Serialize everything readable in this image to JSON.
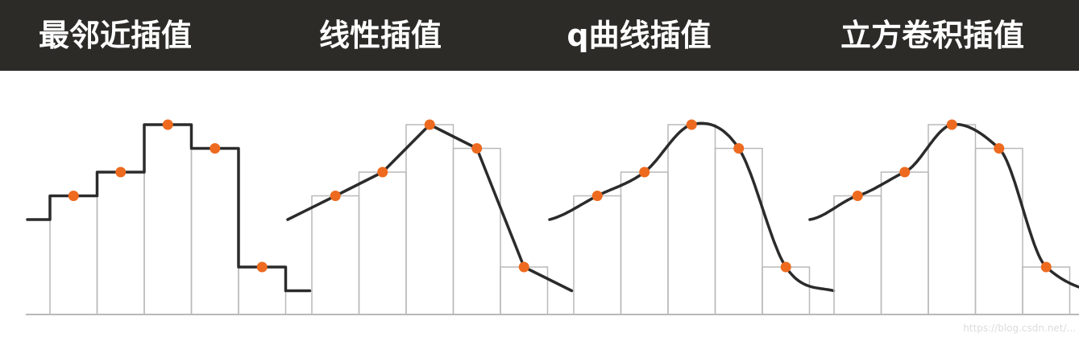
{
  "header": {
    "titles": [
      "最邻近插值",
      "线性插值",
      "q曲线插值",
      "立方卷积插值"
    ]
  },
  "colors": {
    "header_bg": "#2c2b28",
    "header_text": "#ffffff",
    "curve": "#2b2b2b",
    "bars": "#b9b9b9",
    "points": "#ee6a1f"
  },
  "samples": [
    0.5,
    0.6,
    0.8,
    0.7,
    0.2
  ],
  "panels": [
    {
      "method": "nearest-neighbor"
    },
    {
      "method": "linear"
    },
    {
      "method": "quadratic-curve"
    },
    {
      "method": "cubic-convolution"
    }
  ],
  "watermark": "https://blog.csdn.net/..."
}
